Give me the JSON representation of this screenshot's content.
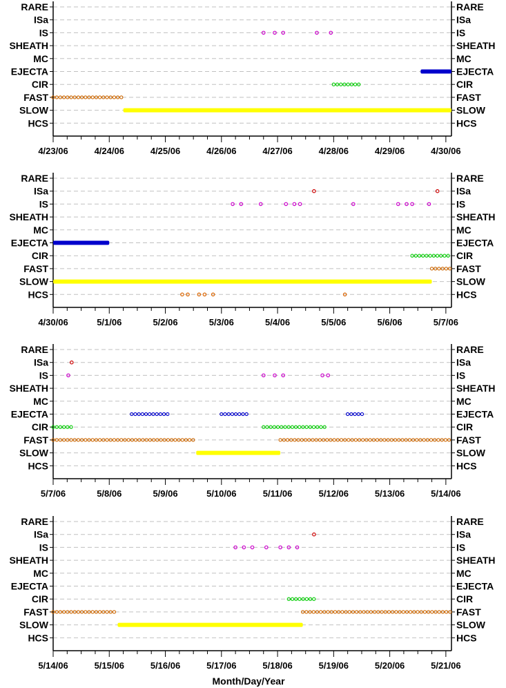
{
  "chart_data": {
    "type": "scatter",
    "xlabel": "Month/Day/Year",
    "categories": [
      "RARE",
      "ISa",
      "IS",
      "SHEATH",
      "MC",
      "EJECTA",
      "CIR",
      "FAST",
      "SLOW",
      "HCS"
    ],
    "colors": {
      "ISa": "#cc0000",
      "IS": "#cc00cc",
      "EJECTA": "#0000cc",
      "CIR": "#00cc00",
      "FAST": "#cc6600",
      "SLOW": "#ffff00",
      "HCS": "#dd6600",
      "grid": "#c0c0c0"
    },
    "grid": "dashed horizontal",
    "panels": [
      {
        "xticks": [
          "4/23/06",
          "4/24/06",
          "4/25/06",
          "4/26/06",
          "4/27/06",
          "4/28/06",
          "4/29/06",
          "4/30/06"
        ],
        "xlim": [
          0,
          7.1
        ],
        "series": [
          {
            "category": "IS",
            "style": "points",
            "x": [
              3.75,
              3.95,
              4.1,
              4.7,
              4.95
            ]
          },
          {
            "category": "EJECTA",
            "style": "dense",
            "x": [
              6.55,
              7.1
            ]
          },
          {
            "category": "CIR",
            "style": "sparse",
            "x": [
              5.0,
              5.45
            ]
          },
          {
            "category": "FAST",
            "style": "sparse",
            "x": [
              0.0,
              1.25
            ]
          },
          {
            "category": "SLOW",
            "style": "dense",
            "x": [
              1.25,
              7.1
            ]
          }
        ]
      },
      {
        "xticks": [
          "4/30/06",
          "5/1/06",
          "5/2/06",
          "5/3/06",
          "5/4/06",
          "5/5/06",
          "5/6/06",
          "5/7/06"
        ],
        "xlim": [
          0,
          7.1
        ],
        "series": [
          {
            "category": "ISa",
            "style": "points",
            "x": [
              4.65,
              6.85
            ]
          },
          {
            "category": "IS",
            "style": "points",
            "x": [
              3.2,
              3.35,
              3.7,
              4.15,
              4.3,
              4.4,
              5.35,
              6.15,
              6.3,
              6.4,
              6.7
            ]
          },
          {
            "category": "EJECTA",
            "style": "dense",
            "x": [
              0.0,
              1.0
            ]
          },
          {
            "category": "CIR",
            "style": "sparse",
            "x": [
              6.4,
              7.1
            ]
          },
          {
            "category": "FAST",
            "style": "sparse",
            "x": [
              6.75,
              7.1
            ]
          },
          {
            "category": "SLOW",
            "style": "dense",
            "x": [
              0.0,
              6.75
            ]
          },
          {
            "category": "HCS",
            "style": "points",
            "x": [
              2.3,
              2.4,
              2.6,
              2.7,
              2.85,
              5.2
            ]
          }
        ]
      },
      {
        "xticks": [
          "5/7/06",
          "5/8/06",
          "5/9/06",
          "5/10/06",
          "5/11/06",
          "5/12/06",
          "5/13/06",
          "5/14/06"
        ],
        "xlim": [
          0,
          7.1
        ],
        "series": [
          {
            "category": "ISa",
            "style": "points",
            "x": [
              0.33
            ]
          },
          {
            "category": "IS",
            "style": "points",
            "x": [
              0.27,
              3.75,
              3.95,
              4.1,
              4.8,
              4.9
            ]
          },
          {
            "category": "EJECTA",
            "style": "sparse",
            "x": [
              1.4,
              2.1
            ]
          },
          {
            "category": "EJECTA",
            "style": "sparse",
            "x": [
              3.0,
              3.45
            ]
          },
          {
            "category": "EJECTA",
            "style": "sparse",
            "x": [
              5.25,
              5.55
            ]
          },
          {
            "category": "CIR",
            "style": "sparse",
            "x": [
              0.0,
              0.35
            ]
          },
          {
            "category": "CIR",
            "style": "sparse",
            "x": [
              3.75,
              4.9
            ]
          },
          {
            "category": "FAST",
            "style": "sparse",
            "x": [
              0.0,
              2.55
            ]
          },
          {
            "category": "FAST",
            "style": "sparse",
            "x": [
              4.05,
              7.1
            ]
          },
          {
            "category": "SLOW",
            "style": "dense",
            "x": [
              2.55,
              4.05
            ]
          }
        ]
      },
      {
        "xticks": [
          "5/14/06",
          "5/15/06",
          "5/16/06",
          "5/17/06",
          "5/18/06",
          "5/19/06",
          "5/20/06",
          "5/21/06"
        ],
        "xlim": [
          0,
          7.1
        ],
        "series": [
          {
            "category": "ISa",
            "style": "points",
            "x": [
              4.65
            ]
          },
          {
            "category": "IS",
            "style": "points",
            "x": [
              3.25,
              3.4,
              3.55,
              3.8,
              4.05,
              4.2,
              4.35
            ]
          },
          {
            "category": "CIR",
            "style": "sparse",
            "x": [
              4.2,
              4.7
            ]
          },
          {
            "category": "FAST",
            "style": "sparse",
            "x": [
              0.0,
              1.15
            ]
          },
          {
            "category": "FAST",
            "style": "sparse",
            "x": [
              4.45,
              7.1
            ]
          },
          {
            "category": "SLOW",
            "style": "dense",
            "x": [
              1.15,
              4.45
            ]
          }
        ]
      }
    ]
  }
}
